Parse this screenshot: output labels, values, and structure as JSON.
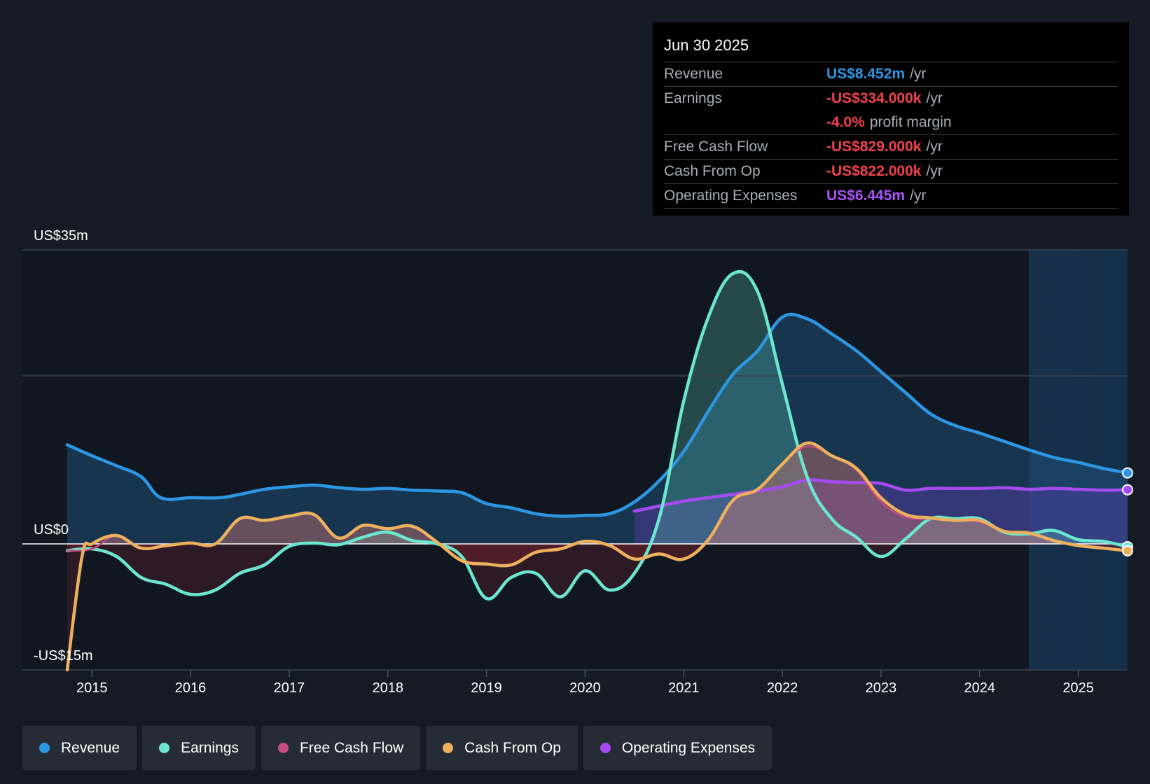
{
  "tooltip": {
    "date": "Jun 30 2025",
    "rows": [
      {
        "label": "Revenue",
        "value": "US$8.452m",
        "unit": "/yr",
        "color": "#2d96e3"
      },
      {
        "label": "Earnings",
        "value": "-US$334.000k",
        "unit": "/yr",
        "color": "#f0424b"
      },
      {
        "label": "",
        "value": "-4.0%",
        "unit": "profit margin",
        "color": "#f0424b"
      },
      {
        "label": "Free Cash Flow",
        "value": "-US$829.000k",
        "unit": "/yr",
        "color": "#f0424b"
      },
      {
        "label": "Cash From Op",
        "value": "-US$822.000k",
        "unit": "/yr",
        "color": "#f0424b"
      },
      {
        "label": "Operating Expenses",
        "value": "US$6.445m",
        "unit": "/yr",
        "color": "#a855f7"
      }
    ]
  },
  "legend": [
    {
      "label": "Revenue",
      "color": "#2d96e3"
    },
    {
      "label": "Earnings",
      "color": "#6ce6d0"
    },
    {
      "label": "Free Cash Flow",
      "color": "#c84a83"
    },
    {
      "label": "Cash From Op",
      "color": "#edb05e"
    },
    {
      "label": "Operating Expenses",
      "color": "#a54bf0"
    }
  ],
  "chart_data": {
    "type": "area",
    "title": "",
    "xlabel": "",
    "ylabel": "",
    "ylim": [
      -15,
      35
    ],
    "xlim": [
      2014.75,
      2025.5
    ],
    "y_tick_labels": [
      "US$35m",
      "US$0",
      "-US$15m"
    ],
    "y_tick_values": [
      35,
      0,
      -15
    ],
    "gridlines": [
      35,
      20
    ],
    "x_tick_labels": [
      "2015",
      "2016",
      "2017",
      "2018",
      "2019",
      "2020",
      "2021",
      "2022",
      "2023",
      "2024",
      "2025"
    ],
    "x_tick_values": [
      2015,
      2016,
      2017,
      2018,
      2019,
      2020,
      2021,
      2022,
      2023,
      2024,
      2025
    ],
    "forecast_start": 2024.5,
    "series": [
      {
        "name": "Revenue",
        "color": "#2d96e3",
        "x": [
          2014.75,
          2015.0,
          2015.25,
          2015.5,
          2015.7,
          2016.0,
          2016.3,
          2016.5,
          2016.75,
          2017.0,
          2017.25,
          2017.5,
          2017.75,
          2018.0,
          2018.25,
          2018.5,
          2018.75,
          2019.0,
          2019.25,
          2019.5,
          2019.75,
          2020.0,
          2020.25,
          2020.5,
          2020.75,
          2021.0,
          2021.25,
          2021.5,
          2021.75,
          2022.0,
          2022.25,
          2022.5,
          2022.75,
          2023.0,
          2023.25,
          2023.5,
          2023.75,
          2024.0,
          2024.25,
          2024.5,
          2024.75,
          2025.0,
          2025.25,
          2025.5
        ],
        "values": [
          11.8,
          10.5,
          9.3,
          8.0,
          5.5,
          5.5,
          5.5,
          5.9,
          6.5,
          6.8,
          7.0,
          6.7,
          6.5,
          6.6,
          6.4,
          6.3,
          6.1,
          4.8,
          4.3,
          3.6,
          3.3,
          3.4,
          3.6,
          5.0,
          7.5,
          11.0,
          15.8,
          20.2,
          23.0,
          27.0,
          26.8,
          25.0,
          23.0,
          20.5,
          18.0,
          15.5,
          14.1,
          13.2,
          12.2,
          11.2,
          10.3,
          9.7,
          9.0,
          8.452
        ]
      },
      {
        "name": "Earnings",
        "color": "#6ce6d0",
        "x": [
          2014.75,
          2015.0,
          2015.25,
          2015.5,
          2015.75,
          2016.0,
          2016.25,
          2016.5,
          2016.75,
          2017.0,
          2017.25,
          2017.5,
          2017.75,
          2018.0,
          2018.25,
          2018.5,
          2018.75,
          2019.0,
          2019.25,
          2019.5,
          2019.75,
          2020.0,
          2020.25,
          2020.5,
          2020.75,
          2021.0,
          2021.25,
          2021.5,
          2021.75,
          2022.0,
          2022.25,
          2022.5,
          2022.75,
          2023.0,
          2023.25,
          2023.5,
          2023.75,
          2024.0,
          2024.25,
          2024.5,
          2024.75,
          2025.0,
          2025.25,
          2025.5
        ],
        "values": [
          -0.8,
          -0.6,
          -1.5,
          -4.0,
          -4.8,
          -6.0,
          -5.5,
          -3.5,
          -2.5,
          -0.3,
          0.1,
          -0.1,
          0.8,
          1.4,
          0.4,
          0.0,
          -1.5,
          -6.5,
          -4.0,
          -3.5,
          -6.3,
          -3.2,
          -5.5,
          -3.5,
          3.0,
          17.0,
          27.0,
          32.2,
          30.0,
          19.0,
          8.0,
          3.0,
          0.8,
          -1.5,
          0.6,
          3.0,
          3.0,
          3.0,
          1.4,
          1.2,
          1.6,
          0.5,
          0.3,
          -0.334
        ]
      },
      {
        "name": "Free Cash Flow",
        "color": "#c84a83",
        "x": [
          2014.75,
          2015.0,
          2015.25,
          2015.5,
          2015.75,
          2016.0,
          2016.25,
          2016.5,
          2016.75,
          2017.0,
          2017.25,
          2017.5,
          2017.75,
          2018.0,
          2018.25,
          2018.5,
          2018.75,
          2019.0,
          2019.25,
          2019.5,
          2019.75,
          2020.0,
          2020.25,
          2020.5,
          2020.75,
          2021.0,
          2021.25,
          2021.5,
          2021.75,
          2022.0,
          2022.25,
          2022.5,
          2022.75,
          2023.0,
          2023.25,
          2023.5,
          2023.75,
          2024.0,
          2024.25,
          2024.5,
          2024.75,
          2025.0,
          2025.25,
          2025.5
        ],
        "values": [
          -0.8,
          -0.6,
          1.0,
          -0.5,
          -0.3,
          0.1,
          0.0,
          3.0,
          2.8,
          3.3,
          3.5,
          0.7,
          2.2,
          1.8,
          2.1,
          0.2,
          -2.0,
          -2.4,
          -2.5,
          -1.0,
          -0.6,
          0.3,
          -0.2,
          -1.8,
          -1.2,
          -1.8,
          0.5,
          5.2,
          6.5,
          9.5,
          11.6,
          10.5,
          8.8,
          5.0,
          3.2,
          3.0,
          2.8,
          2.6,
          1.5,
          1.3,
          0.4,
          -0.2,
          -0.5,
          -0.829
        ]
      },
      {
        "name": "Cash From Op",
        "color": "#edb05e",
        "x": [
          2014.75,
          2014.9,
          2015.0,
          2015.25,
          2015.5,
          2015.75,
          2016.0,
          2016.25,
          2016.5,
          2016.75,
          2017.0,
          2017.25,
          2017.5,
          2017.75,
          2018.0,
          2018.25,
          2018.5,
          2018.75,
          2019.0,
          2019.25,
          2019.5,
          2019.75,
          2020.0,
          2020.25,
          2020.5,
          2020.75,
          2021.0,
          2021.25,
          2021.5,
          2021.75,
          2022.0,
          2022.25,
          2022.5,
          2022.75,
          2023.0,
          2023.25,
          2023.5,
          2023.75,
          2024.0,
          2024.25,
          2024.5,
          2024.75,
          2025.0,
          2025.25,
          2025.5
        ],
        "values": [
          -15.0,
          -1.5,
          0.0,
          1.0,
          -0.5,
          -0.2,
          0.1,
          0.0,
          3.0,
          2.8,
          3.3,
          3.5,
          0.7,
          2.2,
          1.8,
          2.1,
          0.2,
          -2.0,
          -2.4,
          -2.5,
          -1.0,
          -0.6,
          0.3,
          -0.2,
          -1.8,
          -1.2,
          -1.8,
          0.5,
          5.2,
          6.5,
          9.5,
          12.0,
          10.5,
          9.0,
          5.5,
          3.5,
          3.1,
          2.8,
          2.8,
          1.5,
          1.3,
          0.4,
          -0.2,
          -0.5,
          -0.822
        ]
      },
      {
        "name": "Operating Expenses",
        "color": "#a54bf0",
        "x": [
          2020.5,
          2020.75,
          2021.0,
          2021.25,
          2021.5,
          2021.75,
          2022.0,
          2022.25,
          2022.5,
          2022.75,
          2023.0,
          2023.25,
          2023.5,
          2023.75,
          2024.0,
          2024.25,
          2024.5,
          2024.75,
          2025.0,
          2025.25,
          2025.5
        ],
        "values": [
          3.9,
          4.5,
          5.1,
          5.5,
          5.9,
          6.3,
          6.8,
          7.6,
          7.4,
          7.3,
          7.2,
          6.4,
          6.6,
          6.6,
          6.6,
          6.7,
          6.5,
          6.6,
          6.5,
          6.4,
          6.445
        ]
      }
    ]
  }
}
